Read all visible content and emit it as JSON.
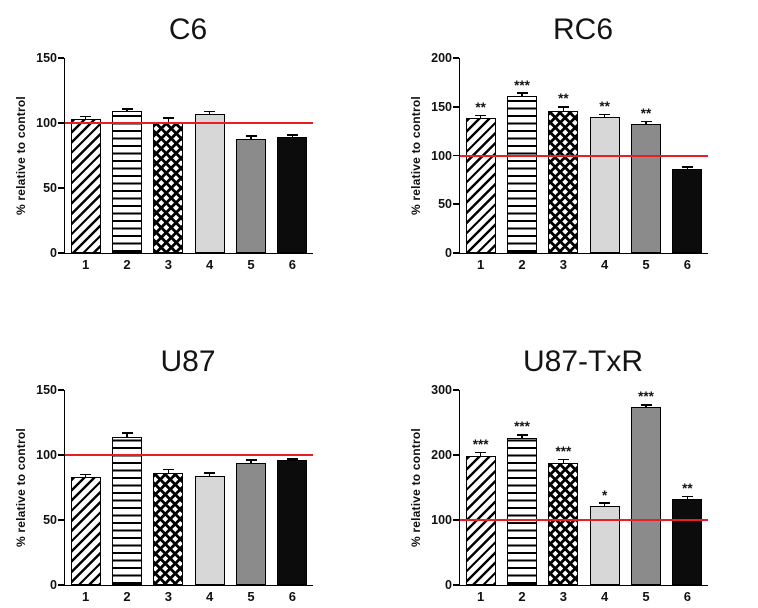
{
  "figure": {
    "background": "#ffffff",
    "axis_color": "#000000",
    "reference_line_color": "#ed1c24",
    "bar_styles": [
      "diagonal-hatch",
      "horizontal-lines",
      "crosshatch",
      "light-gray",
      "dark-gray",
      "black"
    ],
    "bar_style_colors": {
      "light-gray": "#d7d7d7",
      "dark-gray": "#8b8b8b",
      "black": "#0c0c0c"
    }
  },
  "chart_data": [
    {
      "type": "bar",
      "title": "C6",
      "ylabel": "% relative to control",
      "xlabel": "",
      "categories": [
        "1",
        "2",
        "3",
        "4",
        "5",
        "6"
      ],
      "values": [
        103,
        109,
        100,
        107,
        88,
        89
      ],
      "errors": [
        2,
        2,
        4,
        2,
        2,
        2
      ],
      "significance": [
        "",
        "",
        "",
        "",
        "",
        ""
      ],
      "ylim": [
        0,
        150
      ],
      "yticks": [
        0,
        50,
        100,
        150
      ],
      "reference_line": 100,
      "grid": false,
      "legend": false
    },
    {
      "type": "bar",
      "title": "RC6",
      "ylabel": "% relative to control",
      "xlabel": "",
      "categories": [
        "1",
        "2",
        "3",
        "4",
        "5",
        "6"
      ],
      "values": [
        138,
        161,
        146,
        140,
        132,
        86
      ],
      "errors": [
        3,
        3,
        4,
        2,
        3,
        2
      ],
      "significance": [
        "**",
        "***",
        "**",
        "**",
        "**",
        ""
      ],
      "ylim": [
        0,
        200
      ],
      "yticks": [
        0,
        50,
        100,
        150,
        200
      ],
      "reference_line": 100,
      "grid": false,
      "legend": false
    },
    {
      "type": "bar",
      "title": "U87",
      "ylabel": "% relative to control",
      "xlabel": "",
      "categories": [
        "1",
        "2",
        "3",
        "4",
        "5",
        "6"
      ],
      "values": [
        83,
        114,
        86,
        84,
        94,
        96
      ],
      "errors": [
        2,
        3,
        3,
        2,
        2,
        1
      ],
      "significance": [
        "",
        "",
        "",
        "",
        "",
        ""
      ],
      "ylim": [
        0,
        150
      ],
      "yticks": [
        0,
        50,
        100,
        150
      ],
      "reference_line": 100,
      "grid": false,
      "legend": false
    },
    {
      "type": "bar",
      "title": "U87-TxR",
      "ylabel": "% relative to control",
      "xlabel": "",
      "categories": [
        "1",
        "2",
        "3",
        "4",
        "5",
        "6"
      ],
      "values": [
        199,
        226,
        188,
        122,
        274,
        132
      ],
      "errors": [
        5,
        5,
        5,
        4,
        3,
        4
      ],
      "significance": [
        "***",
        "***",
        "***",
        "*",
        "***",
        "**"
      ],
      "ylim": [
        0,
        300
      ],
      "yticks": [
        0,
        100,
        200,
        300
      ],
      "reference_line": 100,
      "grid": false,
      "legend": false
    }
  ]
}
